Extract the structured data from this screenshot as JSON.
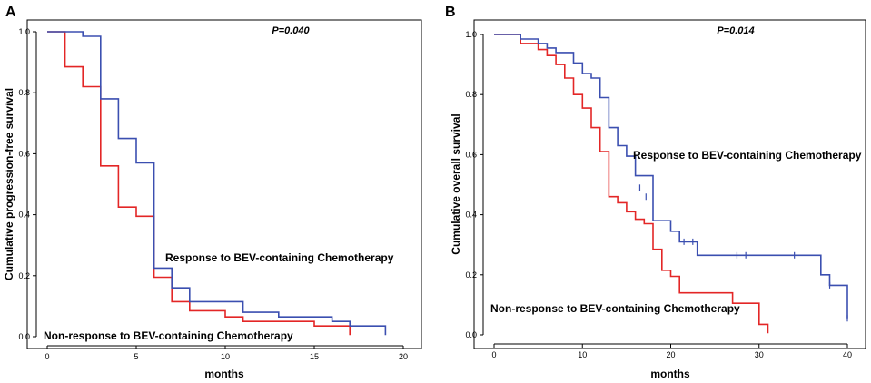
{
  "colors": {
    "response": "#3b4fb0",
    "nonresponse": "#e32626"
  },
  "chart_data": [
    {
      "type": "line",
      "panel": "A",
      "title": "",
      "p_value": "P=0.040",
      "xlabel": "months",
      "ylabel": "Cumulative progression-free survival",
      "xlim": [
        0,
        20
      ],
      "ylim": [
        0.0,
        1.0
      ],
      "xticks": [
        "0",
        "5",
        "10",
        "15",
        "20"
      ],
      "yticks": [
        "0.0",
        "0.2",
        "0.4",
        "0.6",
        "0.8",
        "1.0"
      ],
      "annotations": {
        "response": "Response to BEV-containing Chemotherapy",
        "nonresponse": "Non-response to BEV-containing Chemotherapy"
      },
      "series": [
        {
          "name": "Response to BEV-containing Chemotherapy",
          "color_key": "response",
          "steps": [
            [
              0,
              1.0
            ],
            [
              2,
              1.0
            ],
            [
              2,
              0.985
            ],
            [
              3,
              0.985
            ],
            [
              3,
              0.78
            ],
            [
              4,
              0.78
            ],
            [
              4,
              0.65
            ],
            [
              5,
              0.65
            ],
            [
              5,
              0.57
            ],
            [
              6,
              0.57
            ],
            [
              6,
              0.225
            ],
            [
              7,
              0.225
            ],
            [
              7,
              0.16
            ],
            [
              8,
              0.16
            ],
            [
              8,
              0.115
            ],
            [
              11,
              0.115
            ],
            [
              11,
              0.08
            ],
            [
              13,
              0.08
            ],
            [
              13,
              0.065
            ],
            [
              16,
              0.065
            ],
            [
              16,
              0.05
            ],
            [
              17,
              0.05
            ],
            [
              17,
              0.035
            ],
            [
              19,
              0.035
            ],
            [
              19,
              0.005
            ]
          ],
          "censors": []
        },
        {
          "name": "Non-response to BEV-containing Chemotherapy",
          "color_key": "nonresponse",
          "steps": [
            [
              0,
              1.0
            ],
            [
              1,
              1.0
            ],
            [
              1,
              0.885
            ],
            [
              2,
              0.885
            ],
            [
              2,
              0.82
            ],
            [
              3,
              0.82
            ],
            [
              3,
              0.56
            ],
            [
              4,
              0.56
            ],
            [
              4,
              0.425
            ],
            [
              5,
              0.425
            ],
            [
              5,
              0.395
            ],
            [
              6,
              0.395
            ],
            [
              6,
              0.195
            ],
            [
              7,
              0.195
            ],
            [
              7,
              0.115
            ],
            [
              8,
              0.115
            ],
            [
              8,
              0.085
            ],
            [
              10,
              0.085
            ],
            [
              10,
              0.065
            ],
            [
              11,
              0.065
            ],
            [
              11,
              0.05
            ],
            [
              15,
              0.05
            ],
            [
              15,
              0.035
            ],
            [
              17,
              0.035
            ],
            [
              17,
              0.005
            ]
          ],
          "censors": []
        }
      ]
    },
    {
      "type": "line",
      "panel": "B",
      "title": "",
      "p_value": "P=0.014",
      "xlabel": "months",
      "ylabel": "Cumulative overall survival",
      "xlim": [
        0,
        40
      ],
      "ylim": [
        0.0,
        1.0
      ],
      "xticks": [
        "0",
        "10",
        "20",
        "30",
        "40"
      ],
      "yticks": [
        "0.0",
        "0.2",
        "0.4",
        "0.6",
        "0.8",
        "1.0"
      ],
      "annotations": {
        "response": "Response to BEV-containing Chemotherapy",
        "nonresponse": "Non-response to BEV-containing Chemotherapy"
      },
      "series": [
        {
          "name": "Response to BEV-containing Chemotherapy",
          "color_key": "response",
          "steps": [
            [
              0,
              1.0
            ],
            [
              3,
              1.0
            ],
            [
              3,
              0.985
            ],
            [
              5,
              0.985
            ],
            [
              5,
              0.97
            ],
            [
              6,
              0.97
            ],
            [
              6,
              0.955
            ],
            [
              7,
              0.955
            ],
            [
              7,
              0.94
            ],
            [
              9,
              0.94
            ],
            [
              9,
              0.905
            ],
            [
              10,
              0.905
            ],
            [
              10,
              0.87
            ],
            [
              11,
              0.87
            ],
            [
              11,
              0.855
            ],
            [
              12,
              0.855
            ],
            [
              12,
              0.79
            ],
            [
              13,
              0.79
            ],
            [
              13,
              0.69
            ],
            [
              14,
              0.69
            ],
            [
              14,
              0.63
            ],
            [
              15,
              0.63
            ],
            [
              15,
              0.595
            ],
            [
              16,
              0.595
            ],
            [
              16,
              0.53
            ],
            [
              18,
              0.53
            ],
            [
              18,
              0.38
            ],
            [
              20,
              0.38
            ],
            [
              20,
              0.345
            ],
            [
              21,
              0.345
            ],
            [
              21,
              0.31
            ],
            [
              23,
              0.31
            ],
            [
              23,
              0.265
            ],
            [
              37,
              0.265
            ],
            [
              37,
              0.2
            ],
            [
              38,
              0.2
            ],
            [
              38,
              0.165
            ],
            [
              40,
              0.165
            ],
            [
              40,
              0.055
            ]
          ],
          "censors": [
            [
              16.5,
              0.49
            ],
            [
              17.2,
              0.46
            ],
            [
              21.5,
              0.31
            ],
            [
              22.5,
              0.31
            ],
            [
              27.5,
              0.265
            ],
            [
              28.5,
              0.265
            ],
            [
              34,
              0.265
            ],
            [
              38,
              0.165
            ],
            [
              40,
              0.055
            ]
          ]
        },
        {
          "name": "Non-response to BEV-containing Chemotherapy",
          "color_key": "nonresponse",
          "steps": [
            [
              0,
              1.0
            ],
            [
              3,
              1.0
            ],
            [
              3,
              0.97
            ],
            [
              5,
              0.97
            ],
            [
              5,
              0.95
            ],
            [
              6,
              0.95
            ],
            [
              6,
              0.93
            ],
            [
              7,
              0.93
            ],
            [
              7,
              0.9
            ],
            [
              8,
              0.9
            ],
            [
              8,
              0.855
            ],
            [
              9,
              0.855
            ],
            [
              9,
              0.8
            ],
            [
              10,
              0.8
            ],
            [
              10,
              0.755
            ],
            [
              11,
              0.755
            ],
            [
              11,
              0.69
            ],
            [
              12,
              0.69
            ],
            [
              12,
              0.61
            ],
            [
              13,
              0.61
            ],
            [
              13,
              0.46
            ],
            [
              14,
              0.46
            ],
            [
              14,
              0.44
            ],
            [
              15,
              0.44
            ],
            [
              15,
              0.41
            ],
            [
              16,
              0.41
            ],
            [
              16,
              0.385
            ],
            [
              17,
              0.385
            ],
            [
              17,
              0.37
            ],
            [
              18,
              0.37
            ],
            [
              18,
              0.285
            ],
            [
              19,
              0.285
            ],
            [
              19,
              0.215
            ],
            [
              20,
              0.215
            ],
            [
              20,
              0.195
            ],
            [
              21,
              0.195
            ],
            [
              21,
              0.14
            ],
            [
              27,
              0.14
            ],
            [
              27,
              0.105
            ],
            [
              30,
              0.105
            ],
            [
              30,
              0.035
            ],
            [
              31,
              0.035
            ],
            [
              31,
              0.005
            ]
          ],
          "censors": []
        }
      ]
    }
  ]
}
